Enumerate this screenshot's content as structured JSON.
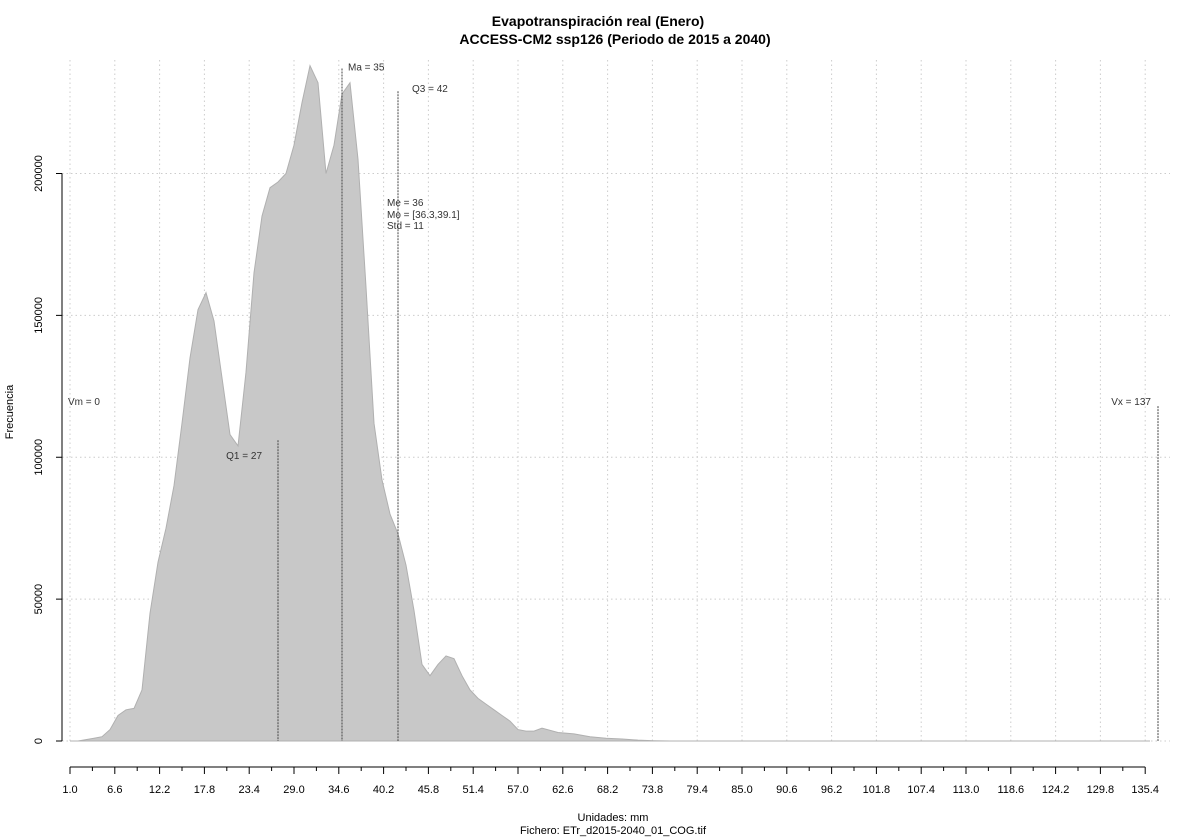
{
  "chart_data": {
    "type": "area",
    "title": "Evapotranspiración real (Enero)",
    "subtitle": "ACCESS-CM2 ssp126 (Periodo de 2015 a 2040)",
    "xlabel": "Unidades: mm",
    "ylabel": "Frecuencia",
    "footer": "Fichero: ETr_d2015-2040_01_COG.tif",
    "xlim": [
      0,
      138.5
    ],
    "ylim": [
      0,
      240000
    ],
    "grid": true,
    "x_ticks": [
      1.0,
      6.6,
      12.2,
      17.8,
      23.4,
      29.0,
      34.6,
      40.2,
      45.8,
      51.4,
      57.0,
      62.6,
      68.2,
      73.8,
      79.4,
      85.0,
      90.6,
      96.2,
      101.8,
      107.4,
      113.0,
      118.6,
      124.2,
      129.8,
      135.4
    ],
    "x_tick_labels": [
      "1.0",
      "6.6",
      "12.2",
      "17.8",
      "23.4",
      "29.0",
      "34.6",
      "40.2",
      "45.8",
      "51.4",
      "57.0",
      "62.6",
      "68.2",
      "73.8",
      "79.4",
      "85.0",
      "90.6",
      "96.2",
      "101.8",
      "107.4",
      "113.0",
      "118.6",
      "124.2",
      "129.8",
      "135.4"
    ],
    "y_ticks": [
      0,
      50000,
      100000,
      150000,
      200000
    ],
    "y_tick_labels": [
      "0",
      "50000",
      "100000",
      "150000",
      "200000"
    ],
    "x": [
      1,
      2,
      3,
      4,
      5,
      6,
      7,
      8,
      9,
      10,
      11,
      12,
      13,
      14,
      15,
      16,
      17,
      18,
      19,
      20,
      21,
      22,
      23,
      24,
      25,
      26,
      27,
      28,
      29,
      30,
      31,
      32,
      33,
      34,
      35,
      36,
      37,
      38,
      39,
      40,
      41,
      42,
      43,
      44,
      45,
      46,
      47,
      48,
      49,
      50,
      51,
      52,
      53,
      54,
      55,
      56,
      57,
      58,
      59,
      60,
      62,
      64,
      66,
      68,
      70,
      72,
      74,
      76,
      78,
      80,
      84,
      90,
      100,
      110,
      120,
      130,
      136
    ],
    "y": [
      0,
      0,
      500,
      1000,
      1500,
      4000,
      9000,
      11000,
      11500,
      18000,
      45000,
      63000,
      75000,
      90000,
      112000,
      135000,
      152000,
      158000,
      148000,
      128000,
      108000,
      104000,
      130000,
      165000,
      185000,
      195000,
      197000,
      200000,
      210000,
      225000,
      238000,
      232000,
      200000,
      210000,
      228000,
      232000,
      205000,
      160000,
      112000,
      92000,
      80000,
      73000,
      62000,
      46000,
      27000,
      23000,
      27000,
      30000,
      29000,
      23000,
      18000,
      15000,
      13000,
      11000,
      9000,
      7000,
      4000,
      3500,
      3500,
      4500,
      3000,
      2500,
      1500,
      1000,
      700,
      300,
      100,
      0,
      0,
      0,
      0,
      0,
      0,
      0,
      0,
      0,
      0
    ],
    "vertical_lines": [
      {
        "x": 0,
        "label": "Vm = 0"
      },
      {
        "x": 27,
        "label": "Q1 = 27"
      },
      {
        "x": 35,
        "label": "Ma = 35"
      },
      {
        "x": 42,
        "label": "Q3 = 42"
      },
      {
        "x": 137,
        "label": "Vx = 137"
      }
    ],
    "stats": [
      "Me = 36",
      "Mo = [36.3,39.1]",
      "Std = 11"
    ],
    "colors": {
      "fill": "#c8c8c8",
      "grid": "#cccccc"
    }
  }
}
